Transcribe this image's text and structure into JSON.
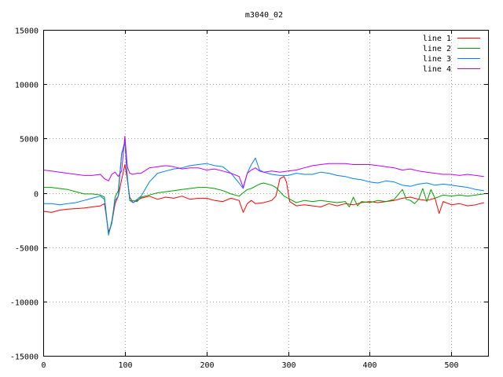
{
  "chart_data": {
    "type": "line",
    "title": "m3040_02",
    "xlabel": "",
    "ylabel": "",
    "xlim": [
      0,
      545
    ],
    "ylim": [
      -15000,
      15000
    ],
    "x_ticks": [
      0,
      100,
      200,
      300,
      400,
      500
    ],
    "y_ticks": [
      -15000,
      -10000,
      -5000,
      0,
      5000,
      10000,
      15000
    ],
    "grid": true,
    "legend_position": "top-right",
    "series": [
      {
        "name": "line 1",
        "color": "#ff0000",
        "points": [
          [
            0,
            -1700
          ],
          [
            10,
            -1800
          ],
          [
            20,
            -1600
          ],
          [
            30,
            -1500
          ],
          [
            40,
            -1450
          ],
          [
            50,
            -1400
          ],
          [
            60,
            -1300
          ],
          [
            70,
            -1200
          ],
          [
            75,
            -1000
          ],
          [
            80,
            -3600
          ],
          [
            84,
            -2800
          ],
          [
            88,
            -1000
          ],
          [
            92,
            -300
          ],
          [
            96,
            1200
          ],
          [
            100,
            2600
          ],
          [
            103,
            1200
          ],
          [
            106,
            -400
          ],
          [
            110,
            -900
          ],
          [
            115,
            -700
          ],
          [
            120,
            -500
          ],
          [
            130,
            -300
          ],
          [
            140,
            -600
          ],
          [
            150,
            -400
          ],
          [
            160,
            -500
          ],
          [
            170,
            -300
          ],
          [
            180,
            -600
          ],
          [
            190,
            -500
          ],
          [
            200,
            -500
          ],
          [
            210,
            -700
          ],
          [
            220,
            -800
          ],
          [
            230,
            -500
          ],
          [
            240,
            -700
          ],
          [
            245,
            -1800
          ],
          [
            250,
            -1000
          ],
          [
            255,
            -700
          ],
          [
            260,
            -1000
          ],
          [
            270,
            -900
          ],
          [
            280,
            -700
          ],
          [
            285,
            -300
          ],
          [
            290,
            1300
          ],
          [
            295,
            1500
          ],
          [
            298,
            1000
          ],
          [
            302,
            -800
          ],
          [
            310,
            -1200
          ],
          [
            320,
            -1100
          ],
          [
            330,
            -1200
          ],
          [
            340,
            -1300
          ],
          [
            350,
            -1000
          ],
          [
            360,
            -1200
          ],
          [
            370,
            -1000
          ],
          [
            380,
            -1100
          ],
          [
            390,
            -900
          ],
          [
            400,
            -800
          ],
          [
            410,
            -900
          ],
          [
            420,
            -800
          ],
          [
            430,
            -700
          ],
          [
            440,
            -500
          ],
          [
            450,
            -400
          ],
          [
            460,
            -600
          ],
          [
            470,
            -700
          ],
          [
            480,
            -500
          ],
          [
            485,
            -1900
          ],
          [
            490,
            -800
          ],
          [
            500,
            -1100
          ],
          [
            510,
            -1000
          ],
          [
            520,
            -1200
          ],
          [
            530,
            -1100
          ],
          [
            540,
            -900
          ]
        ]
      },
      {
        "name": "line 2",
        "color": "#00a000",
        "points": [
          [
            0,
            500
          ],
          [
            10,
            500
          ],
          [
            20,
            400
          ],
          [
            30,
            300
          ],
          [
            40,
            100
          ],
          [
            50,
            -100
          ],
          [
            60,
            -100
          ],
          [
            70,
            -200
          ],
          [
            75,
            -400
          ],
          [
            80,
            -3800
          ],
          [
            84,
            -2800
          ],
          [
            88,
            -400
          ],
          [
            92,
            200
          ],
          [
            96,
            3500
          ],
          [
            100,
            4700
          ],
          [
            103,
            1500
          ],
          [
            106,
            -700
          ],
          [
            110,
            -700
          ],
          [
            115,
            -800
          ],
          [
            120,
            -400
          ],
          [
            130,
            -200
          ],
          [
            140,
            0
          ],
          [
            150,
            100
          ],
          [
            160,
            200
          ],
          [
            170,
            300
          ],
          [
            180,
            400
          ],
          [
            190,
            500
          ],
          [
            200,
            500
          ],
          [
            210,
            400
          ],
          [
            220,
            200
          ],
          [
            230,
            -100
          ],
          [
            240,
            -300
          ],
          [
            245,
            0
          ],
          [
            250,
            300
          ],
          [
            255,
            400
          ],
          [
            260,
            600
          ],
          [
            265,
            800
          ],
          [
            270,
            900
          ],
          [
            280,
            700
          ],
          [
            285,
            500
          ],
          [
            290,
            100
          ],
          [
            295,
            -300
          ],
          [
            300,
            -500
          ],
          [
            310,
            -900
          ],
          [
            320,
            -700
          ],
          [
            330,
            -800
          ],
          [
            340,
            -700
          ],
          [
            350,
            -800
          ],
          [
            360,
            -900
          ],
          [
            370,
            -800
          ],
          [
            375,
            -1300
          ],
          [
            380,
            -400
          ],
          [
            385,
            -1200
          ],
          [
            390,
            -800
          ],
          [
            400,
            -900
          ],
          [
            410,
            -700
          ],
          [
            420,
            -800
          ],
          [
            430,
            -600
          ],
          [
            440,
            300
          ],
          [
            445,
            -600
          ],
          [
            450,
            -700
          ],
          [
            455,
            -1000
          ],
          [
            460,
            -600
          ],
          [
            465,
            400
          ],
          [
            470,
            -800
          ],
          [
            475,
            300
          ],
          [
            480,
            -500
          ],
          [
            490,
            -200
          ],
          [
            500,
            -300
          ],
          [
            510,
            -200
          ],
          [
            520,
            -300
          ],
          [
            530,
            -200
          ],
          [
            540,
            -100
          ]
        ]
      },
      {
        "name": "line 3",
        "color": "#0080ff",
        "points": [
          [
            0,
            -1000
          ],
          [
            10,
            -1000
          ],
          [
            20,
            -1100
          ],
          [
            30,
            -1000
          ],
          [
            40,
            -900
          ],
          [
            50,
            -700
          ],
          [
            60,
            -500
          ],
          [
            70,
            -300
          ],
          [
            75,
            -600
          ],
          [
            80,
            -3900
          ],
          [
            84,
            -2600
          ],
          [
            88,
            -700
          ],
          [
            92,
            -300
          ],
          [
            96,
            3600
          ],
          [
            100,
            4700
          ],
          [
            103,
            1300
          ],
          [
            106,
            -700
          ],
          [
            110,
            -900
          ],
          [
            115,
            -600
          ],
          [
            120,
            -300
          ],
          [
            130,
            1000
          ],
          [
            140,
            1800
          ],
          [
            150,
            2000
          ],
          [
            160,
            2200
          ],
          [
            170,
            2300
          ],
          [
            180,
            2500
          ],
          [
            190,
            2600
          ],
          [
            200,
            2700
          ],
          [
            210,
            2500
          ],
          [
            220,
            2400
          ],
          [
            230,
            1800
          ],
          [
            240,
            900
          ],
          [
            245,
            400
          ],
          [
            250,
            1800
          ],
          [
            255,
            2600
          ],
          [
            260,
            3200
          ],
          [
            265,
            2100
          ],
          [
            270,
            1900
          ],
          [
            280,
            1700
          ],
          [
            290,
            1600
          ],
          [
            300,
            1600
          ],
          [
            310,
            1800
          ],
          [
            320,
            1700
          ],
          [
            330,
            1700
          ],
          [
            340,
            1900
          ],
          [
            350,
            1800
          ],
          [
            360,
            1600
          ],
          [
            370,
            1500
          ],
          [
            380,
            1300
          ],
          [
            390,
            1200
          ],
          [
            400,
            1000
          ],
          [
            410,
            900
          ],
          [
            420,
            1100
          ],
          [
            430,
            1000
          ],
          [
            440,
            700
          ],
          [
            450,
            600
          ],
          [
            460,
            800
          ],
          [
            470,
            900
          ],
          [
            480,
            700
          ],
          [
            490,
            800
          ],
          [
            500,
            700
          ],
          [
            510,
            600
          ],
          [
            520,
            500
          ],
          [
            530,
            300
          ],
          [
            540,
            200
          ]
        ]
      },
      {
        "name": "line 4",
        "color": "#c000ff",
        "points": [
          [
            0,
            2100
          ],
          [
            10,
            2000
          ],
          [
            20,
            1900
          ],
          [
            30,
            1800
          ],
          [
            40,
            1700
          ],
          [
            50,
            1600
          ],
          [
            60,
            1600
          ],
          [
            70,
            1700
          ],
          [
            75,
            1300
          ],
          [
            80,
            1100
          ],
          [
            84,
            1700
          ],
          [
            88,
            1900
          ],
          [
            92,
            1500
          ],
          [
            96,
            2000
          ],
          [
            100,
            5200
          ],
          [
            103,
            2400
          ],
          [
            106,
            1800
          ],
          [
            110,
            1700
          ],
          [
            115,
            1800
          ],
          [
            120,
            1800
          ],
          [
            130,
            2300
          ],
          [
            140,
            2400
          ],
          [
            150,
            2500
          ],
          [
            160,
            2400
          ],
          [
            170,
            2200
          ],
          [
            180,
            2300
          ],
          [
            190,
            2300
          ],
          [
            200,
            2100
          ],
          [
            210,
            2200
          ],
          [
            220,
            2000
          ],
          [
            230,
            1800
          ],
          [
            240,
            1500
          ],
          [
            245,
            500
          ],
          [
            250,
            1800
          ],
          [
            255,
            2100
          ],
          [
            260,
            2300
          ],
          [
            265,
            2000
          ],
          [
            270,
            1900
          ],
          [
            280,
            2000
          ],
          [
            290,
            1900
          ],
          [
            300,
            2000
          ],
          [
            310,
            2100
          ],
          [
            320,
            2300
          ],
          [
            330,
            2500
          ],
          [
            340,
            2600
          ],
          [
            350,
            2700
          ],
          [
            360,
            2700
          ],
          [
            370,
            2700
          ],
          [
            380,
            2600
          ],
          [
            390,
            2600
          ],
          [
            400,
            2600
          ],
          [
            410,
            2500
          ],
          [
            420,
            2400
          ],
          [
            430,
            2300
          ],
          [
            440,
            2100
          ],
          [
            450,
            2200
          ],
          [
            460,
            2000
          ],
          [
            470,
            1900
          ],
          [
            480,
            1800
          ],
          [
            490,
            1700
          ],
          [
            500,
            1700
          ],
          [
            510,
            1600
          ],
          [
            520,
            1700
          ],
          [
            530,
            1600
          ],
          [
            540,
            1500
          ]
        ]
      }
    ]
  }
}
